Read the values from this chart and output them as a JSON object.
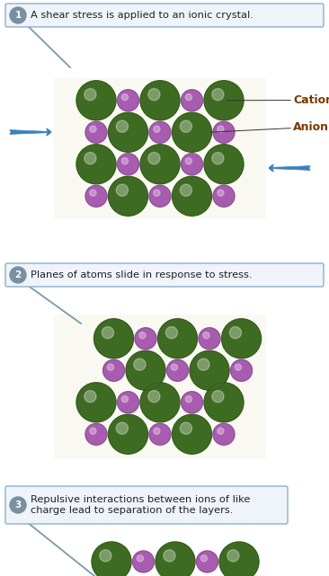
{
  "bg_color": "#ffffff",
  "step1_text": "A shear stress is applied to an ionic crystal.",
  "step2_text": "Planes of atoms slide in response to stress.",
  "step3_line1": "Repulsive interactions between ions of like",
  "step3_line2": "charge lead to separation of the layers.",
  "cation_label": "Cation",
  "anion_label": "Anion",
  "cation_color": "#3d6b22",
  "anion_color": "#a85cb0",
  "box_edge_color": "#8ab0cc",
  "box_face_color": "#eef4fa",
  "step_circle_color": "#7a8fa0",
  "step_text_color": "#222222",
  "arrow_color": "#3a80c0",
  "line_color": "#7a9aaa",
  "cation_label_color": "#7a3800",
  "anion_label_color": "#7a3800",
  "fig_width": 3.66,
  "fig_height": 6.41,
  "dpi": 100
}
